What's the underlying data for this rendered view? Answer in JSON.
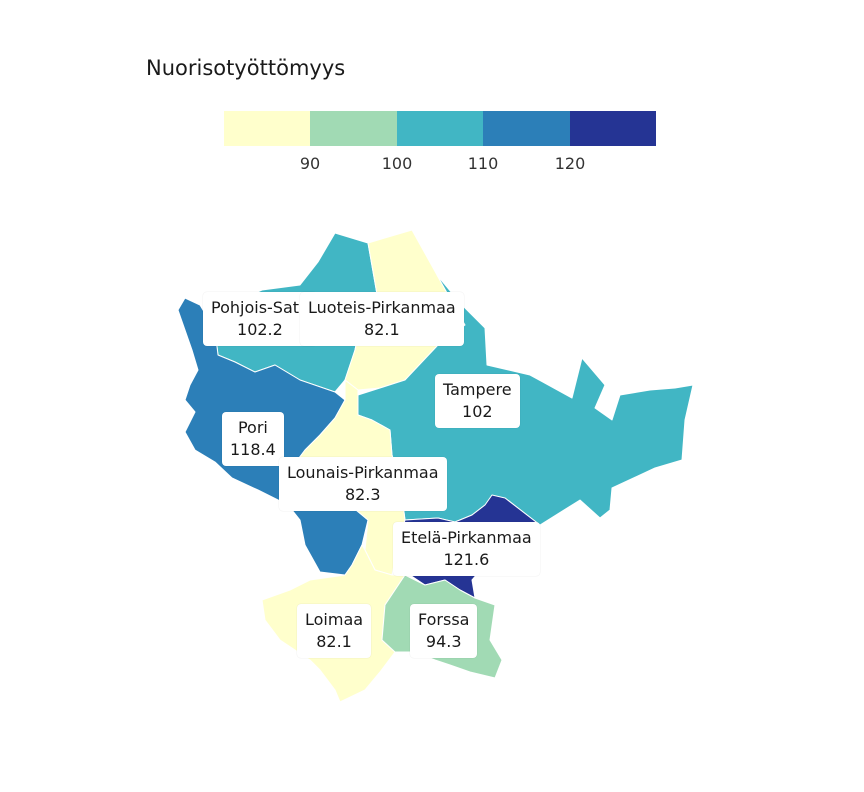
{
  "title": "Nuorisotyöttömyys",
  "legend": {
    "colors": [
      "#ffffcc",
      "#a1dab4",
      "#41b6c4",
      "#2c7fb8",
      "#253494"
    ],
    "ticks": [
      "90",
      "100",
      "110",
      "120"
    ]
  },
  "regions": [
    {
      "name": "Pohjois-Satakunta",
      "label": "Pohjois-Sata",
      "value": "102.2",
      "color": "#41b6c4"
    },
    {
      "name": "Luoteis-Pirkanmaa",
      "label": "Luoteis-Pirkanmaa",
      "value": "82.1",
      "color": "#ffffcc"
    },
    {
      "name": "Tampere",
      "label": "Tampere",
      "value": "102",
      "color": "#41b6c4"
    },
    {
      "name": "Pori",
      "label": "Pori",
      "value": "118.4",
      "color": "#2c7fb8"
    },
    {
      "name": "Lounais-Pirkanmaa",
      "label": "Lounais-Pirkanmaa",
      "value": "82.3",
      "color": "#ffffcc"
    },
    {
      "name": "Etelä-Pirkanmaa",
      "label": "Etelä-Pirkanmaa",
      "value": "121.6",
      "color": "#253494"
    },
    {
      "name": "Loimaa",
      "label": "Loimaa",
      "value": "82.1",
      "color": "#ffffcc"
    },
    {
      "name": "Forssa",
      "label": "Forssa",
      "value": "94.3",
      "color": "#a1dab4"
    }
  ]
}
